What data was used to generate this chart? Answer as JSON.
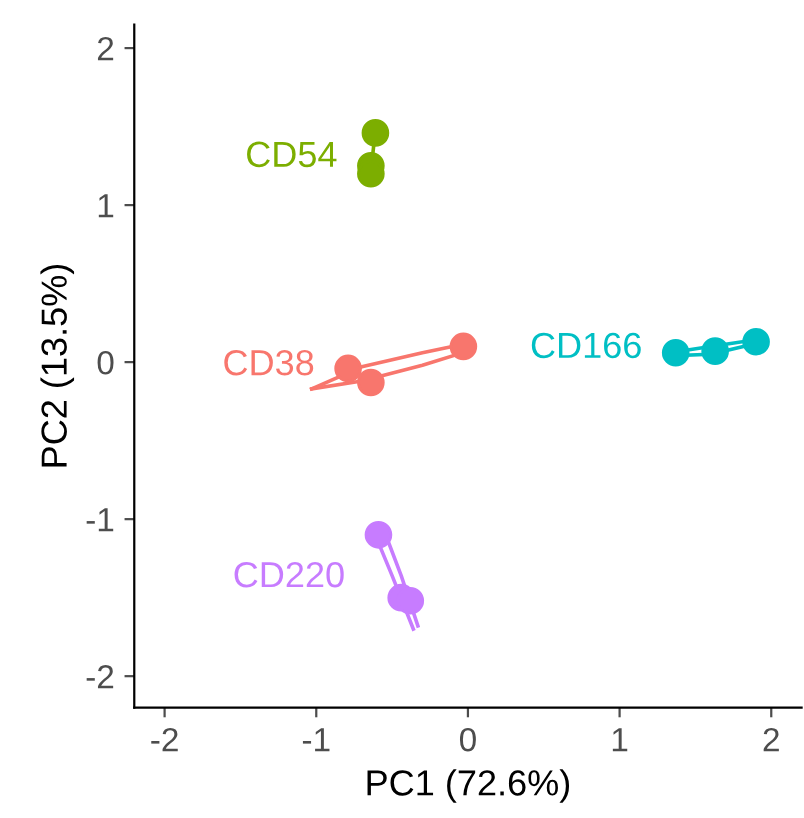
{
  "chart_data": {
    "type": "scatter",
    "xlabel": "PC1 (72.6%)",
    "ylabel": "PC2 (13.5%)",
    "xlim": [
      -2.2,
      2.2
    ],
    "ylim": [
      -2.2,
      2.15
    ],
    "xticks": [
      -2,
      -1,
      0,
      1,
      2
    ],
    "yticks": [
      -2,
      -1,
      0,
      1,
      2
    ],
    "grid": false,
    "marker": "circle",
    "series": [
      {
        "name": "CD54",
        "color": "#7cae00",
        "x": [
          -0.61,
          -0.64,
          -0.64
        ],
        "values": [
          1.46,
          1.25,
          1.2
        ]
      },
      {
        "type": "line",
        "marker": "none",
        "color": "#7cae00",
        "x": [
          -0.65,
          -0.63,
          -0.61
        ],
        "values": [
          1.17,
          1.3,
          1.48
        ]
      },
      {
        "name": "CD38",
        "color": "#f8766d",
        "x": [
          -0.79,
          -0.64,
          -0.03
        ],
        "values": [
          -0.04,
          -0.13,
          0.1
        ]
      },
      {
        "type": "line",
        "marker": "none",
        "color": "#f8766d",
        "x": [
          -1.03,
          -0.7,
          -0.3,
          0.0,
          0.04
        ],
        "values": [
          -0.17,
          -0.03,
          0.06,
          0.12,
          0.11
        ]
      },
      {
        "type": "line",
        "marker": "none",
        "color": "#f8766d",
        "x": [
          -1.03,
          -0.7,
          -0.3,
          0.0,
          0.04
        ],
        "values": [
          -0.17,
          -0.12,
          -0.02,
          0.07,
          0.11
        ]
      },
      {
        "name": "CD166",
        "color": "#00bfc4",
        "x": [
          1.37,
          1.63,
          1.9
        ],
        "values": [
          0.06,
          0.07,
          0.13
        ]
      },
      {
        "type": "line",
        "marker": "none",
        "color": "#00bfc4",
        "x": [
          1.33,
          1.6,
          1.95
        ],
        "values": [
          0.06,
          0.1,
          0.15
        ]
      },
      {
        "type": "line",
        "marker": "none",
        "color": "#00bfc4",
        "x": [
          1.33,
          1.6,
          1.95
        ],
        "values": [
          0.04,
          0.05,
          0.13
        ]
      },
      {
        "name": "CD220",
        "color": "#c77cff",
        "x": [
          -0.59,
          -0.44,
          -0.38
        ],
        "values": [
          -1.1,
          -1.5,
          -1.52
        ]
      },
      {
        "type": "line",
        "marker": "none",
        "color": "#c77cff",
        "x": [
          -0.62,
          -0.5,
          -0.36
        ],
        "values": [
          -1.08,
          -1.36,
          -1.7
        ]
      },
      {
        "type": "line",
        "marker": "none",
        "color": "#c77cff",
        "x": [
          -0.55,
          -0.44,
          -0.33
        ],
        "values": [
          -1.08,
          -1.36,
          -1.68
        ]
      }
    ]
  }
}
